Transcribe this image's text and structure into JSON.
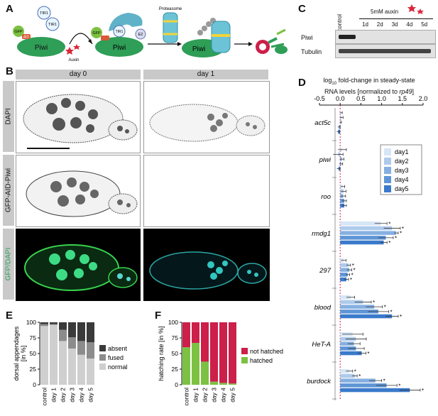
{
  "figure": {
    "panels": [
      "A",
      "B",
      "C",
      "D",
      "E",
      "F"
    ]
  },
  "panel_a": {
    "labels": {
      "gfp": "GFP",
      "aid": "AID",
      "piwi": "Piwi",
      "tir1": "TIR1",
      "auxin": "Auxin",
      "e2": "E2",
      "proteasome": "Proteasome",
      "ub": "Ub"
    }
  },
  "panel_b": {
    "columns": [
      "day 0",
      "day 1"
    ],
    "rows": [
      "DAPI",
      "GFP-AID-Piwi",
      "GFP/DAPI"
    ]
  },
  "panel_c": {
    "control": "control",
    "treatment": "5mM auxin",
    "days": [
      "1d",
      "2d",
      "3d",
      "4d",
      "5d"
    ],
    "rows": [
      "Piwi",
      "Tubulin"
    ]
  },
  "panel_d": {
    "title_line1": "log",
    "title_sub": "10",
    "title_line1b": " fold-change in steady-state",
    "title_line2a": "RNA levels [normalized to ",
    "title_line2b": "rp49",
    "title_line2c": "]",
    "colors": [
      "#d6e6f6",
      "#aecbec",
      "#86b0e1",
      "#5e95d6",
      "#3a7acb"
    ],
    "chart_data": {
      "type": "bar",
      "orientation": "horizontal",
      "xlim": [
        -0.5,
        2.0
      ],
      "ticks": [
        -0.5,
        0.0,
        0.5,
        1.0,
        1.5,
        2.0
      ],
      "tick_labels": [
        "-0.5",
        "0.0",
        "0.5",
        "1.0",
        "1.5",
        "2.0"
      ],
      "categories": [
        "act5c",
        "piwi",
        "roo",
        "rmdg1",
        "297",
        "blood",
        "HeT-A",
        "burdock"
      ],
      "legend": [
        "day1",
        "day2",
        "day3",
        "day4",
        "day5"
      ],
      "series": [
        {
          "name": "day1",
          "values": [
            0.02,
            0.05,
            0.06,
            0.98,
            0.08,
            0.25,
            0.3,
            0.22
          ],
          "errors": [
            0.03,
            0.1,
            0.05,
            0.15,
            0.06,
            0.1,
            0.25,
            0.08
          ]
        },
        {
          "name": "day2",
          "values": [
            0.03,
            -0.05,
            0.08,
            1.25,
            0.2,
            0.55,
            0.38,
            0.35
          ],
          "errors": [
            0.04,
            0.12,
            0.06,
            0.2,
            0.05,
            0.2,
            0.25,
            0.06
          ]
        },
        {
          "name": "day3",
          "values": [
            0.01,
            0.04,
            0.07,
            1.35,
            0.22,
            0.82,
            0.33,
            0.85
          ],
          "errors": [
            0.02,
            0.05,
            0.06,
            0.05,
            0.06,
            0.2,
            0.15,
            0.15
          ]
        },
        {
          "name": "day4",
          "values": [
            -0.03,
            0.02,
            0.1,
            1.1,
            0.18,
            0.92,
            0.38,
            1.12
          ],
          "errors": [
            0.03,
            0.04,
            0.05,
            0.18,
            0.05,
            0.25,
            0.2,
            0.25
          ]
        },
        {
          "name": "day5",
          "values": [
            -0.05,
            -0.04,
            0.1,
            1.05,
            0.15,
            1.25,
            0.52,
            1.68
          ],
          "errors": [
            0.03,
            0.04,
            0.05,
            0.08,
            0.05,
            0.15,
            0.1,
            0.25
          ]
        }
      ],
      "significance": [
        [
          false,
          false,
          false,
          true,
          false,
          false,
          false,
          true
        ],
        [
          false,
          false,
          false,
          true,
          true,
          true,
          false,
          true
        ],
        [
          false,
          false,
          false,
          true,
          true,
          true,
          false,
          true
        ],
        [
          false,
          false,
          false,
          true,
          true,
          true,
          false,
          true
        ],
        [
          false,
          false,
          false,
          true,
          true,
          true,
          true,
          true
        ]
      ],
      "star": "*"
    }
  },
  "panel_e": {
    "ylabel_line1": "dorsal appendages",
    "ylabel_line2": "[in %]",
    "colors": {
      "absent": "#3a3a3a",
      "fused": "#8c8c8c",
      "normal": "#cfcfcf"
    },
    "chart_data": {
      "type": "bar",
      "stacked": true,
      "categories": [
        "control",
        "day 1",
        "day 2",
        "day 3",
        "day 4",
        "day 5"
      ],
      "ylim": [
        0,
        100
      ],
      "yticks": [
        0,
        25,
        50,
        75,
        100
      ],
      "legend": [
        "absent",
        "fused",
        "normal"
      ],
      "series": [
        {
          "name": "normal",
          "values": [
            94,
            96,
            70,
            58,
            48,
            42
          ]
        },
        {
          "name": "fused",
          "values": [
            3,
            1,
            18,
            18,
            22,
            26
          ]
        },
        {
          "name": "absent",
          "values": [
            3,
            3,
            12,
            24,
            30,
            32
          ]
        }
      ]
    }
  },
  "panel_f": {
    "ylabel": "hatching rate [in %]",
    "colors": {
      "not hatched": "#cc1f4a",
      "hatched": "#7cc142"
    },
    "chart_data": {
      "type": "bar",
      "stacked": true,
      "categories": [
        "control",
        "day 1",
        "day 2",
        "day 3",
        "day 4",
        "day 5"
      ],
      "ylim": [
        0,
        100
      ],
      "yticks": [
        0,
        25,
        50,
        75,
        100
      ],
      "legend": [
        "not hatched",
        "hatched"
      ],
      "series": [
        {
          "name": "hatched",
          "values": [
            60,
            67,
            37,
            5,
            3,
            2
          ]
        },
        {
          "name": "not hatched",
          "values": [
            40,
            33,
            63,
            95,
            97,
            98
          ]
        }
      ]
    }
  }
}
